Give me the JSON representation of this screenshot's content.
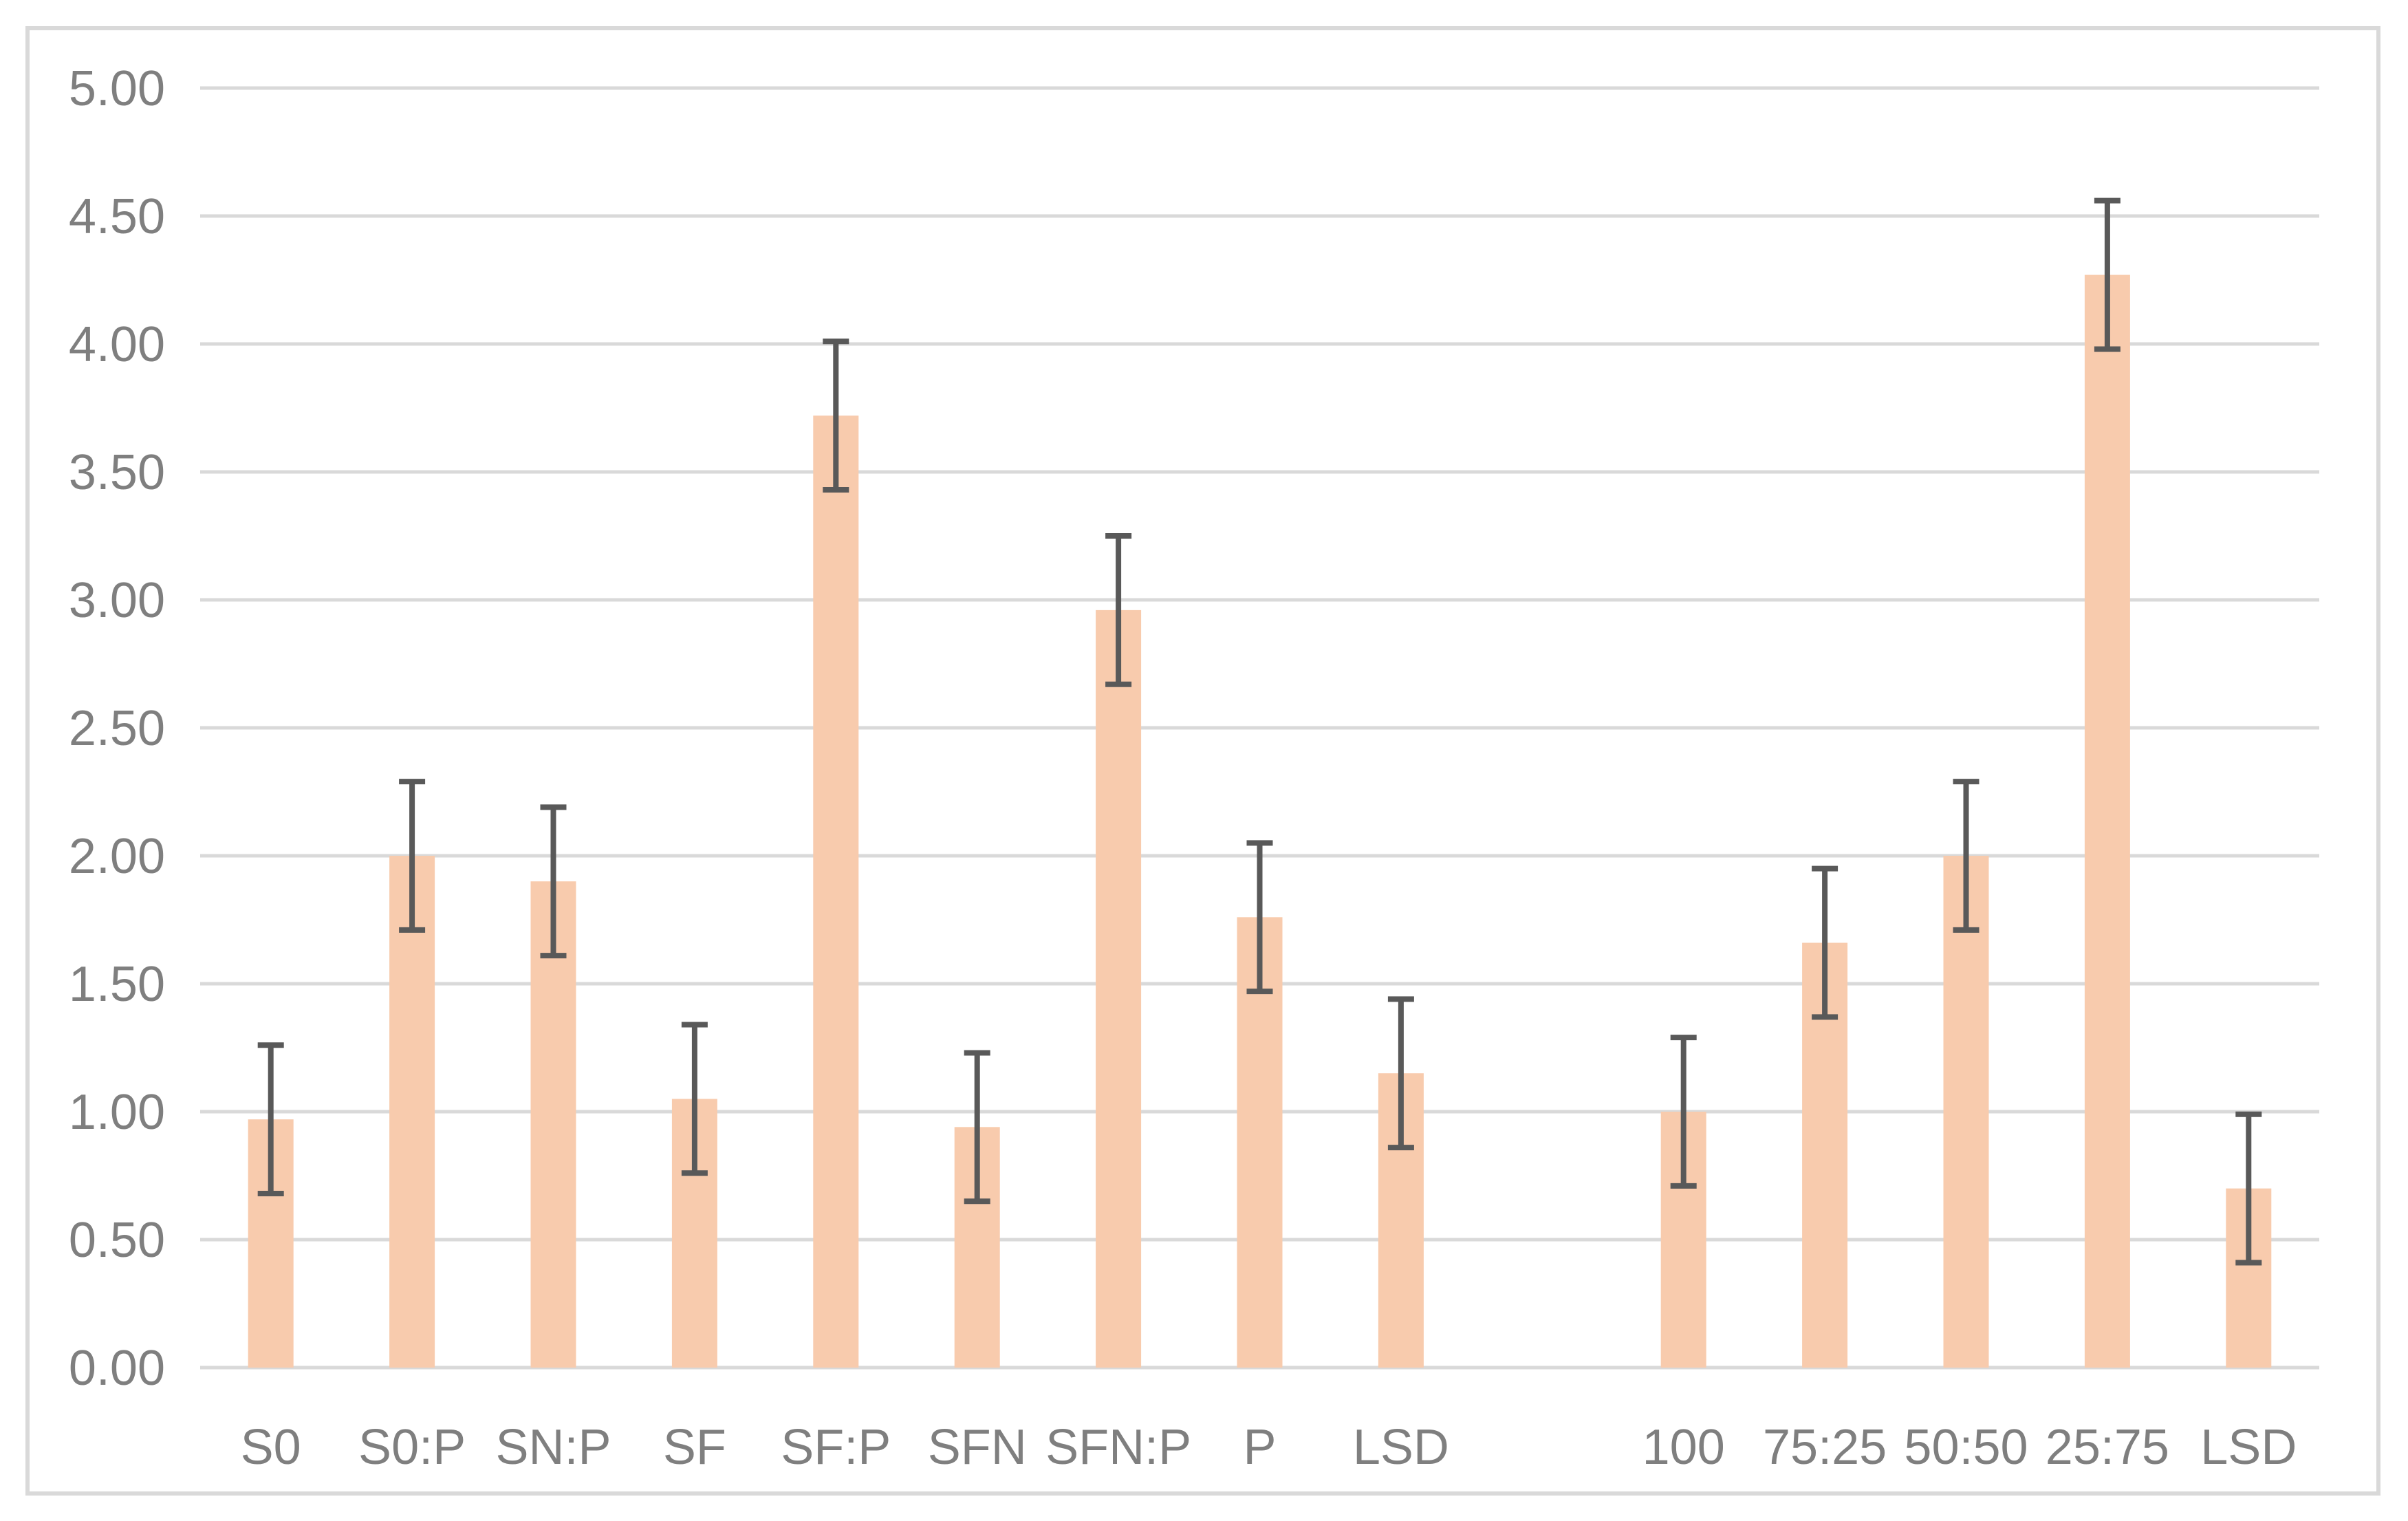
{
  "chart_data": {
    "type": "bar",
    "title": "",
    "xlabel": "",
    "ylabel": "",
    "categories": [
      "S0",
      "S0:P",
      "SN:P",
      "SF",
      "SF:P",
      "SFN",
      "SFN:P",
      "P",
      "LSD",
      "",
      "100",
      "75:25",
      "50:50",
      "25:75",
      "LSD"
    ],
    "values": [
      0.97,
      2.0,
      1.9,
      1.05,
      3.72,
      0.94,
      2.96,
      1.76,
      1.15,
      null,
      1.0,
      1.66,
      2.0,
      4.27,
      0.7
    ],
    "error_bars": [
      0.29,
      0.29,
      0.29,
      0.29,
      0.29,
      0.29,
      0.29,
      0.29,
      0.29,
      null,
      0.29,
      0.29,
      0.29,
      0.29,
      0.29
    ],
    "ylim": [
      0,
      5
    ],
    "ytick_step": 0.5,
    "ytick_labels": [
      "0.00",
      "0.50",
      "1.00",
      "1.50",
      "2.00",
      "2.50",
      "3.00",
      "3.50",
      "4.00",
      "4.50",
      "5.00"
    ],
    "grid": true,
    "legend": "none",
    "colors": {
      "bar_fill": "#F8CBAD",
      "error_bar": "#595959",
      "gridline": "#D9D9D9",
      "axis_text": "#7F7F7F",
      "chart_border": "#D9D9D9",
      "background": "#FFFFFF"
    }
  }
}
